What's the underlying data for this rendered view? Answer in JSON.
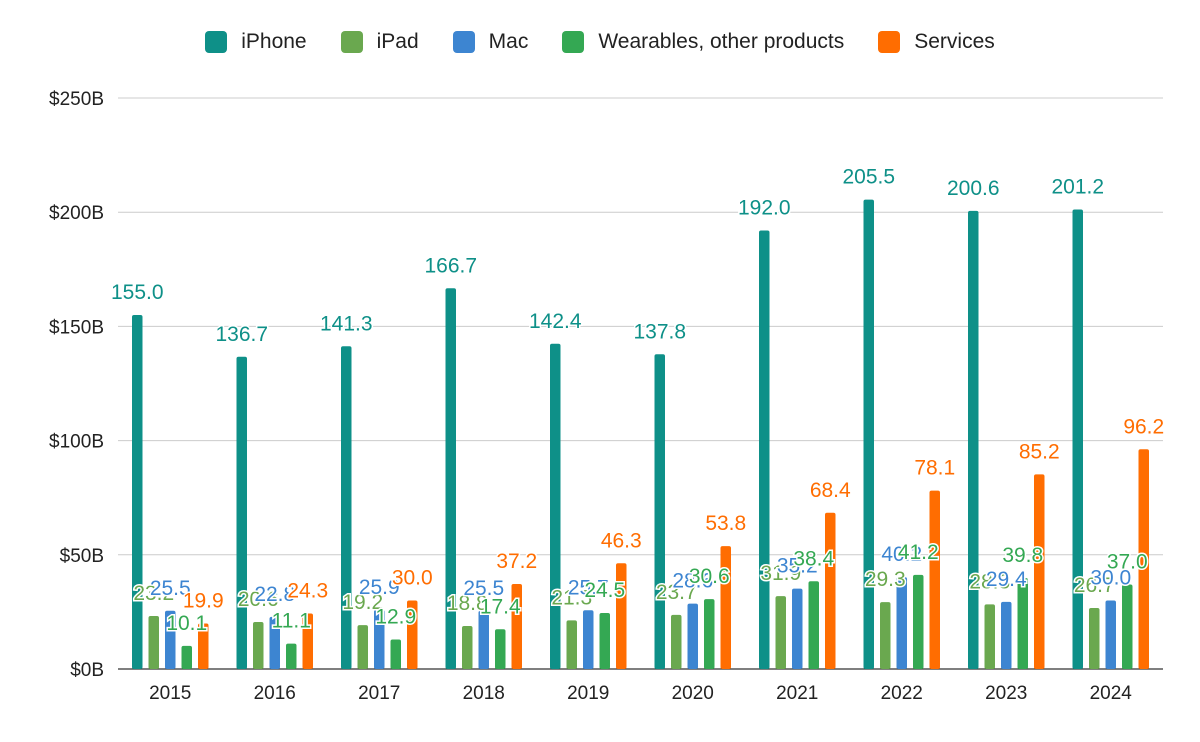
{
  "chart_data": {
    "type": "bar",
    "title": "",
    "xlabel": "",
    "ylabel": "",
    "categories": [
      "2015",
      "2016",
      "2017",
      "2018",
      "2019",
      "2020",
      "2021",
      "2022",
      "2023",
      "2024"
    ],
    "ylim": [
      0,
      250
    ],
    "yticks": [
      0,
      50,
      100,
      150,
      200,
      250
    ],
    "ytick_labels": [
      "$0B",
      "$50B",
      "$100B",
      "$150B",
      "$200B",
      "$250B"
    ],
    "grid": true,
    "legend_position": "top-center",
    "series": [
      {
        "name": "iPhone",
        "color": "#0e9088",
        "values": [
          155.0,
          136.7,
          141.3,
          166.7,
          142.4,
          137.8,
          192.0,
          205.5,
          200.6,
          201.2
        ],
        "labels": [
          "155.0",
          "136.7",
          "141.3",
          "166.7",
          "142.4",
          "137.8",
          "192.0",
          "205.5",
          "200.6",
          "201.2"
        ]
      },
      {
        "name": "iPad",
        "color": "#6aa84f",
        "values": [
          23.2,
          20.6,
          19.2,
          18.8,
          21.3,
          23.7,
          31.9,
          29.3,
          28.3,
          26.7
        ],
        "labels": [
          "23.2",
          "20.6",
          "19.2",
          "18.8",
          "21.3",
          "23.7",
          "31.9",
          "29.3",
          "28.3",
          "26.7"
        ]
      },
      {
        "name": "Mac",
        "color": "#3d85d1",
        "values": [
          25.5,
          22.8,
          25.9,
          25.5,
          25.7,
          28.6,
          35.2,
          40.2,
          29.4,
          30.0
        ],
        "labels": [
          "25.5",
          "22.8",
          "25.9",
          "25.5",
          "25.7",
          "28.6",
          "35.2",
          "40.2",
          "29.4",
          "30.0"
        ]
      },
      {
        "name": "Wearables, other products",
        "color": "#34a853",
        "values": [
          10.1,
          11.1,
          12.9,
          17.4,
          24.5,
          30.6,
          38.4,
          41.2,
          39.8,
          37.0
        ],
        "labels": [
          "10.1",
          "11.1",
          "12.9",
          "17.4",
          "24.5",
          "30.6",
          "38.4",
          "41.2",
          "39.8",
          "37.0"
        ]
      },
      {
        "name": "Services",
        "color": "#ff6d01",
        "values": [
          19.9,
          24.3,
          30.0,
          37.2,
          46.3,
          53.8,
          68.4,
          78.1,
          85.2,
          96.2
        ],
        "labels": [
          "19.9",
          "24.3",
          "30.0",
          "37.2",
          "46.3",
          "53.8",
          "68.4",
          "78.1",
          "85.2",
          "96.2"
        ]
      }
    ]
  }
}
